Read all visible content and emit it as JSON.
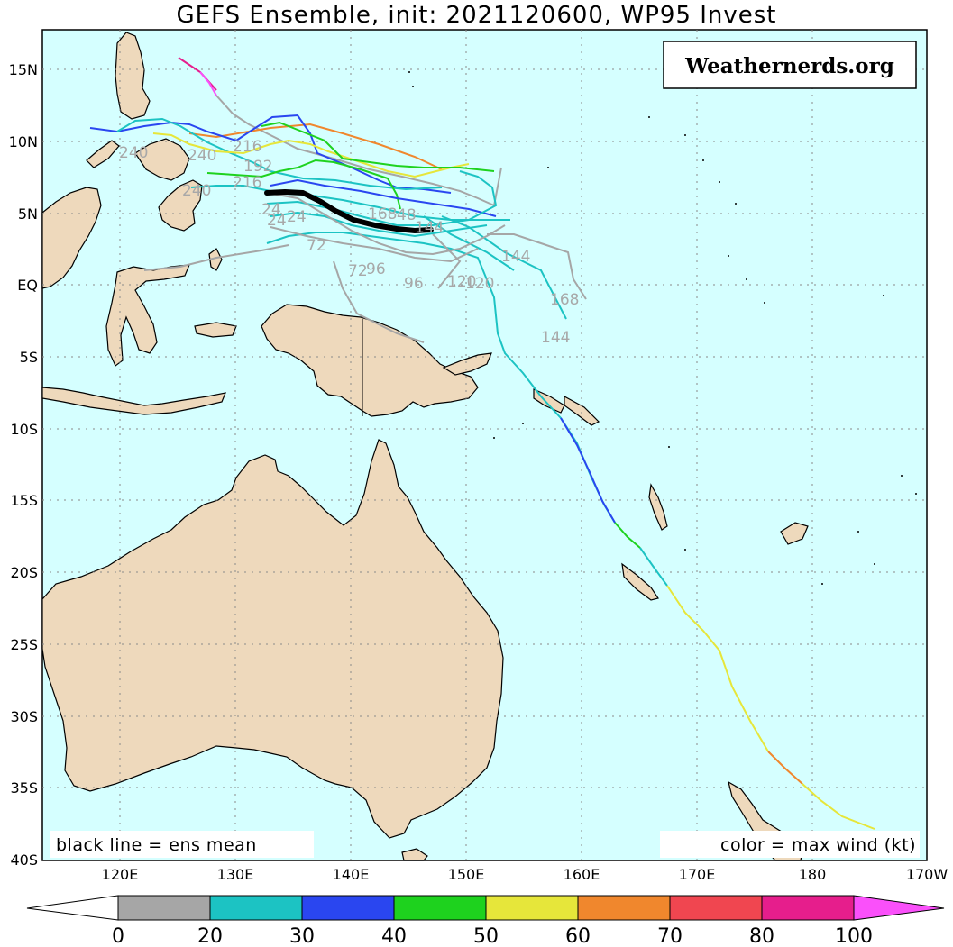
{
  "title": "GEFS Ensemble, init: 2021120600, WP95 Invest",
  "logo": "Weathernerds.org",
  "note_left": "black line = ens mean",
  "note_right": "color = max wind (kt)",
  "lat_labels": [
    "15N",
    "10N",
    "5N",
    "EQ",
    "5S",
    "10S",
    "15S",
    "20S",
    "25S",
    "30S",
    "35S",
    "40S"
  ],
  "lon_labels": [
    "120E",
    "130E",
    "140E",
    "150E",
    "160E",
    "170E",
    "180",
    "170W"
  ],
  "forecast_hour_labels": [
    "240",
    "240",
    "240",
    "216",
    "192",
    "216",
    "24",
    "24",
    "24",
    "168",
    "48",
    "72",
    "72",
    "96",
    "96",
    "120",
    "144",
    "144",
    "168",
    "120",
    "144"
  ],
  "colorbar": {
    "labels": [
      "0",
      "20",
      "30",
      "40",
      "50",
      "60",
      "70",
      "80",
      "100"
    ],
    "colors": [
      "#a6a6a6",
      "#1cc3c3",
      "#2a46f0",
      "#1ed21e",
      "#e6e63a",
      "#f0872d",
      "#f04650",
      "#e61e8c",
      "#fa50fa"
    ]
  },
  "colors": {
    "ocean": "#d5ffff",
    "land": "#eed9bc",
    "grid": "#8a8a8a"
  }
}
